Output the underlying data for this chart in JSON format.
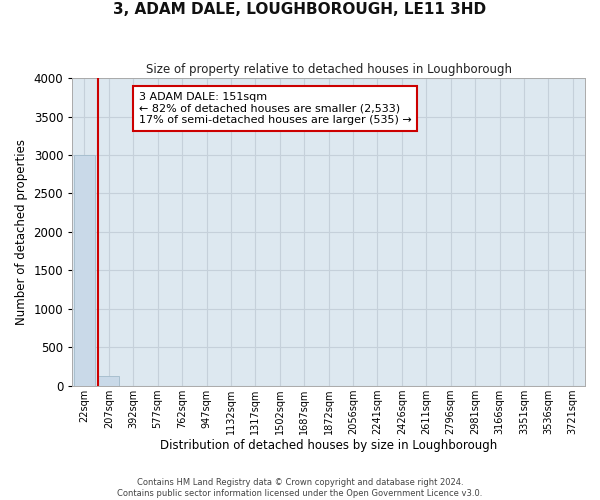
{
  "title": "3, ADAM DALE, LOUGHBOROUGH, LE11 3HD",
  "subtitle": "Size of property relative to detached houses in Loughborough",
  "xlabel": "Distribution of detached houses by size in Loughborough",
  "ylabel": "Number of detached properties",
  "categories": [
    "22sqm",
    "207sqm",
    "392sqm",
    "577sqm",
    "762sqm",
    "947sqm",
    "1132sqm",
    "1317sqm",
    "1502sqm",
    "1687sqm",
    "1872sqm",
    "2056sqm",
    "2241sqm",
    "2426sqm",
    "2611sqm",
    "2796sqm",
    "2981sqm",
    "3166sqm",
    "3351sqm",
    "3536sqm",
    "3721sqm"
  ],
  "bar_heights": [
    3000,
    130,
    0,
    0,
    0,
    0,
    0,
    0,
    0,
    0,
    0,
    0,
    0,
    0,
    0,
    0,
    0,
    0,
    0,
    0,
    0
  ],
  "bar_color": "#c9d9e8",
  "bar_edgecolor": "#a8bfcf",
  "ylim": [
    0,
    4000
  ],
  "yticks": [
    0,
    500,
    1000,
    1500,
    2000,
    2500,
    3000,
    3500,
    4000
  ],
  "annotation_title": "3 ADAM DALE: 151sqm",
  "annotation_line1": "← 82% of detached houses are smaller (2,533)",
  "annotation_line2": "17% of semi-detached houses are larger (535) →",
  "annotation_box_color": "#ffffff",
  "annotation_border_color": "#cc0000",
  "red_line_color": "#cc0000",
  "grid_color": "#c5d0da",
  "bg_color": "#dde8f0",
  "fig_bg_color": "#ffffff",
  "footer_line1": "Contains HM Land Registry data © Crown copyright and database right 2024.",
  "footer_line2": "Contains public sector information licensed under the Open Government Licence v3.0."
}
